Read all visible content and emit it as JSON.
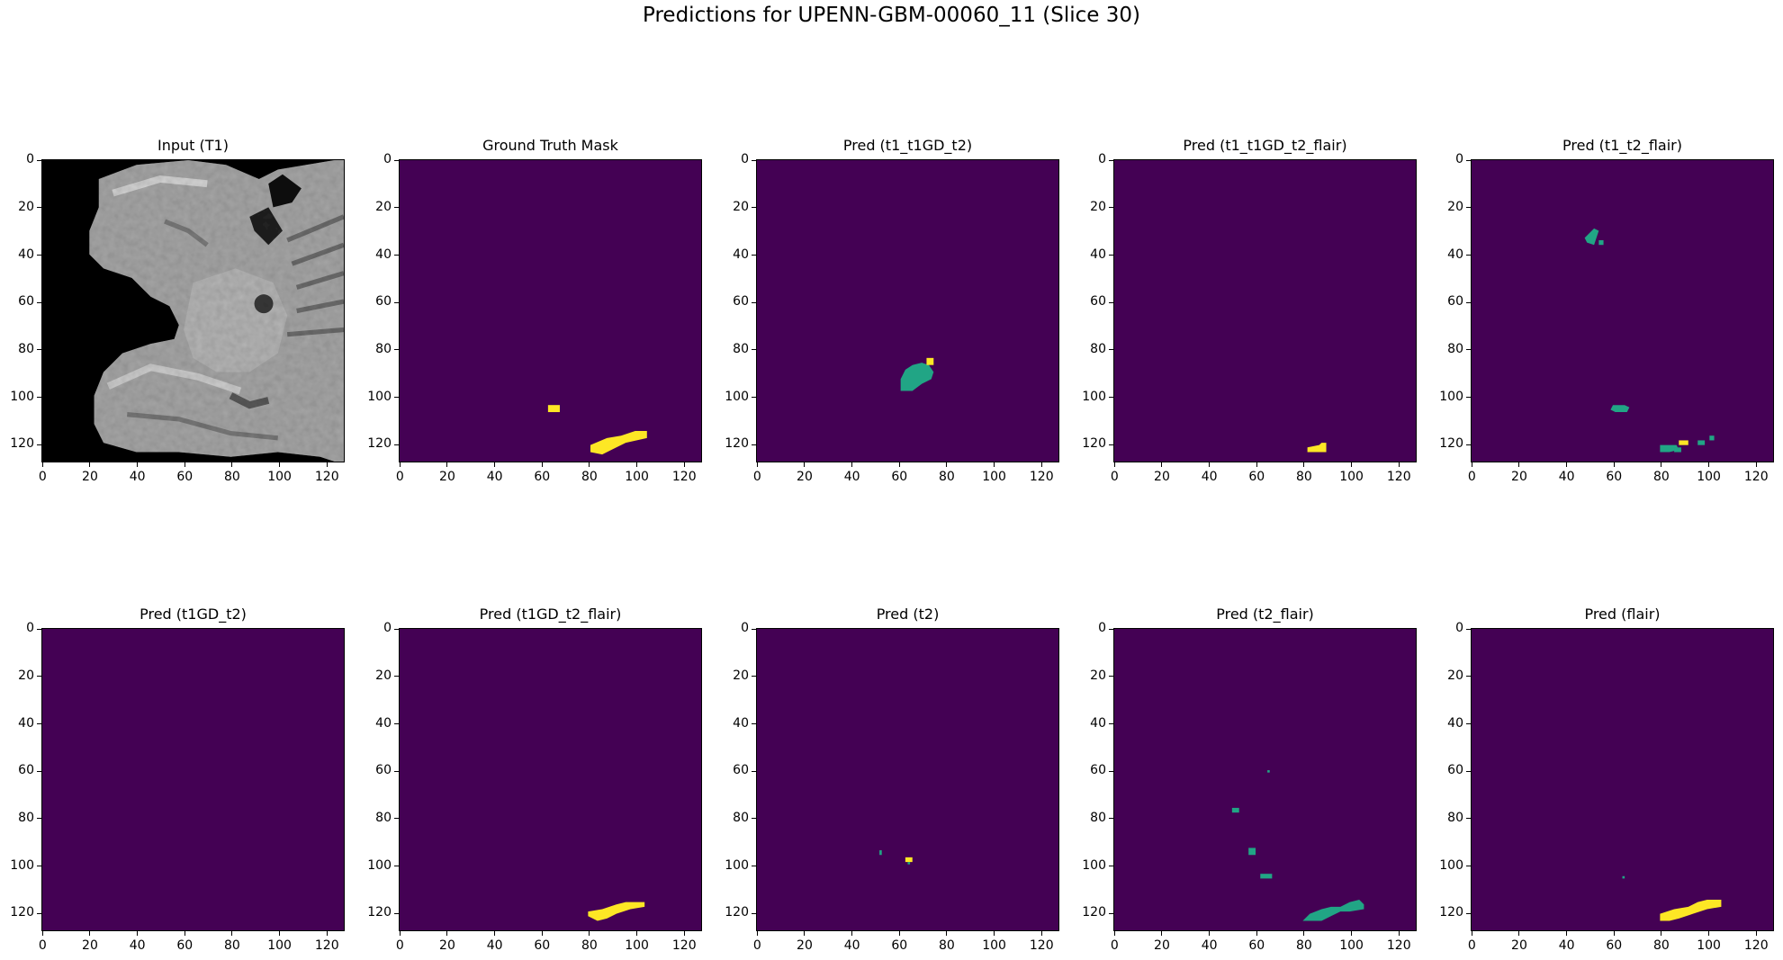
{
  "title": "Predictions for UPENN-GBM-00060_11 (Slice 30)",
  "panel_titles": [
    "Input (T1)",
    "Ground Truth Mask",
    "Pred (t1_t1GD_t2)",
    "Pred (t1_t1GD_t2_flair)",
    "Pred (t1_t2_flair)",
    "Pred (t1GD_t2)",
    "Pred (t1GD_t2_flair)",
    "Pred (t2)",
    "Pred (t2_flair)",
    "Pred (flair)"
  ],
  "axes": {
    "x_ticks": [
      "0",
      "20",
      "40",
      "60",
      "80",
      "100",
      "120"
    ],
    "y_ticks": [
      "0",
      "20",
      "40",
      "60",
      "80",
      "100",
      "120"
    ],
    "range": [
      0,
      127
    ]
  },
  "colors": {
    "background": "#440154",
    "class1": "#21a585",
    "class2": "#fde725"
  }
}
